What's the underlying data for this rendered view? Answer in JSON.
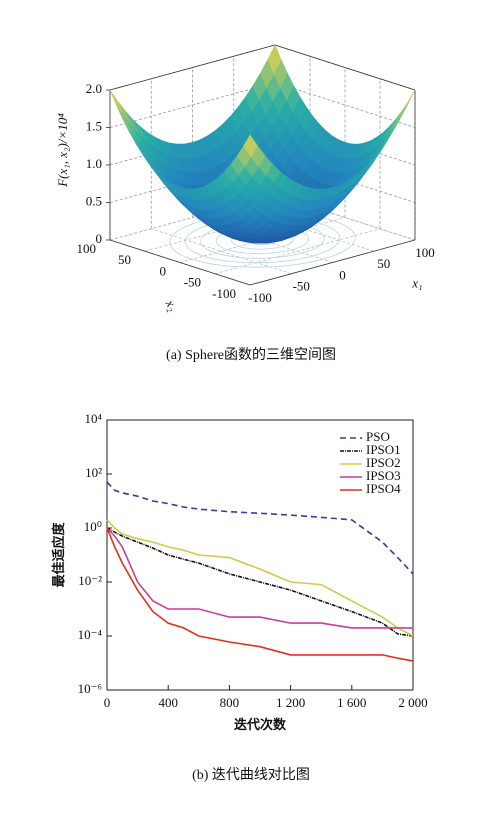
{
  "chart_data": [
    {
      "type": "surface",
      "xlabel": "x₁",
      "ylabel": "x₂",
      "zlabel": "F(x₁, x₂)/×10⁴",
      "xlim": [
        -100,
        100
      ],
      "ylim": [
        -100,
        100
      ],
      "zlim": [
        0,
        2
      ],
      "xticks": [
        -100,
        -50,
        0,
        50,
        100
      ],
      "yticks": [
        -100,
        -50,
        0,
        50,
        100
      ],
      "zticks": [
        0,
        0.5,
        {
          "value": 1,
          "label": "1.0"
        },
        {
          "value": 1.5,
          "label": "1.5"
        },
        {
          "value": 2,
          "label": "2.0"
        }
      ],
      "grid": true,
      "caption": "(a) Sphere函数的三维空间图"
    },
    {
      "type": "line",
      "xlabel": "迭代次数",
      "ylabel": "最佳适应度",
      "caption": "(b) 迭代曲线对比图",
      "log_y": true,
      "legend": "upper right",
      "xlim": [
        0,
        2000
      ],
      "xticks": [
        0,
        400,
        800,
        {
          "value": 1200,
          "label": "1 200"
        },
        {
          "value": 1600,
          "label": "1 600"
        },
        {
          "value": 2000,
          "label": "2 000"
        }
      ],
      "ylim": [
        1e-06,
        10000
      ],
      "yticks": [
        {
          "value": 1e-06,
          "label": "10⁻⁶"
        },
        {
          "value": 0.0001,
          "label": "10⁻⁴"
        },
        {
          "value": 0.01,
          "label": "10⁻²"
        },
        {
          "value": 1,
          "label": "10⁰"
        },
        {
          "value": 100,
          "label": "10²"
        },
        {
          "value": 10000,
          "label": "10⁴"
        }
      ],
      "x": [
        0,
        50,
        100,
        200,
        300,
        400,
        500,
        600,
        800,
        1000,
        1200,
        1400,
        1600,
        1800,
        1900,
        2000
      ],
      "series": [
        {
          "name": "PSO",
          "color": "#3a3a9a",
          "style": "dashed",
          "values": [
            50,
            25,
            20,
            15,
            10,
            8,
            6,
            5,
            4,
            3.5,
            3,
            2.5,
            2,
            0.3,
            0.08,
            0.02
          ]
        },
        {
          "name": "IPSO1",
          "color": "#111111",
          "style": "dashdot",
          "values": [
            1,
            0.7,
            0.5,
            0.3,
            0.18,
            0.1,
            0.07,
            0.05,
            0.02,
            0.01,
            0.005,
            0.002,
            0.0008,
            0.0003,
            0.00012,
            0.0001
          ]
        },
        {
          "name": "IPSO2",
          "color": "#d4c84a",
          "style": "solid",
          "values": [
            2,
            1,
            0.6,
            0.4,
            0.3,
            0.2,
            0.15,
            0.1,
            0.08,
            0.03,
            0.01,
            0.008,
            0.002,
            0.0005,
            0.0002,
            0.0001
          ]
        },
        {
          "name": "IPSO3",
          "color": "#cc3c9c",
          "style": "solid",
          "values": [
            1,
            0.5,
            0.2,
            0.01,
            0.002,
            0.001,
            0.001,
            0.001,
            0.0005,
            0.0005,
            0.0003,
            0.0003,
            0.0002,
            0.0002,
            0.0002,
            0.0002
          ]
        },
        {
          "name": "IPSO4",
          "color": "#e0301e",
          "style": "solid",
          "values": [
            1,
            0.2,
            0.05,
            0.005,
            0.0008,
            0.0003,
            0.0002,
            0.0001,
            6e-05,
            4e-05,
            2e-05,
            2e-05,
            2e-05,
            2e-05,
            1.5e-05,
            1.2e-05
          ]
        }
      ]
    }
  ]
}
